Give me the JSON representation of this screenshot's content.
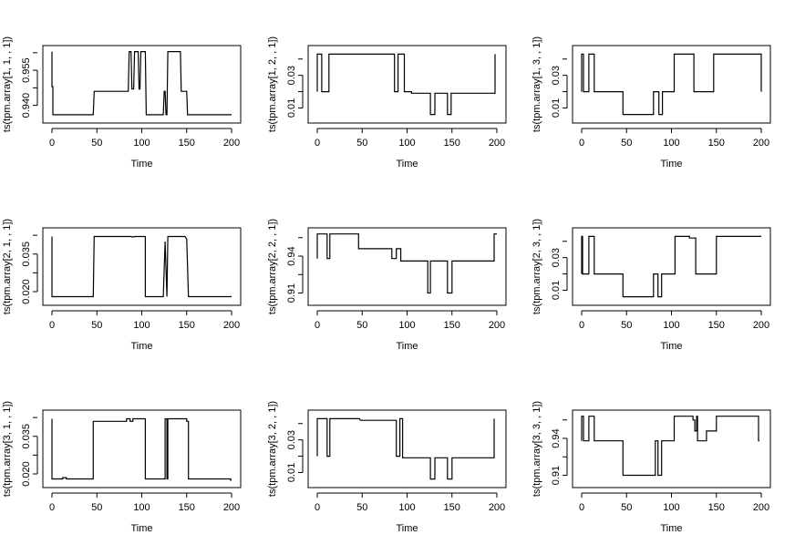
{
  "chart_data": [
    {
      "type": "line",
      "ylabel": "ts(tpm.array[1, 1, , 1])",
      "xlabel": "Time",
      "xlim": [
        0,
        200
      ],
      "ylim": [
        0.934,
        0.964
      ],
      "x_ticks": [
        0,
        50,
        100,
        150,
        200
      ],
      "y_ticks": [
        0.94,
        0.955
      ],
      "y_tick_labels": [
        "0.940",
        "0.955"
      ],
      "x": [
        0,
        0,
        1,
        1,
        2,
        46,
        47,
        85,
        86,
        87,
        88,
        89,
        90,
        91,
        92,
        96,
        97,
        98,
        99,
        100,
        103,
        104,
        105,
        106,
        107,
        124,
        125,
        126,
        127,
        128,
        129,
        130,
        131,
        132,
        133,
        143,
        144,
        145,
        146,
        147,
        148,
        150,
        151,
        152,
        200
      ],
      "y": [
        0.963,
        0.948,
        0.948,
        0.936,
        0.936,
        0.936,
        0.946,
        0.946,
        0.963,
        0.963,
        0.963,
        0.947,
        0.947,
        0.947,
        0.963,
        0.963,
        0.947,
        0.947,
        0.963,
        0.963,
        0.963,
        0.963,
        0.936,
        0.936,
        0.936,
        0.936,
        0.946,
        0.946,
        0.936,
        0.936,
        0.963,
        0.963,
        0.963,
        0.963,
        0.963,
        0.963,
        0.946,
        0.946,
        0.946,
        0.946,
        0.946,
        0.946,
        0.936,
        0.936,
        0.936
      ]
    },
    {
      "type": "line",
      "ylabel": "ts(tpm.array[1, 2, , 1])",
      "xlabel": "Time",
      "xlim": [
        0,
        200
      ],
      "ylim": [
        0.003,
        0.046
      ],
      "x_ticks": [
        0,
        50,
        100,
        150,
        200
      ],
      "y_ticks": [
        0.01,
        0.03
      ],
      "y_tick_labels": [
        "0.01",
        "0.03"
      ],
      "x": [
        0,
        0,
        5,
        5,
        13,
        13,
        17,
        17,
        83,
        83,
        86,
        86,
        90,
        90,
        97,
        97,
        102,
        102,
        105,
        105,
        122,
        122,
        126,
        126,
        131,
        131,
        145,
        145,
        149,
        149,
        154,
        154,
        198,
        198
      ],
      "y": [
        0.02,
        0.043,
        0.043,
        0.02,
        0.02,
        0.043,
        0.043,
        0.043,
        0.043,
        0.043,
        0.043,
        0.02,
        0.02,
        0.043,
        0.043,
        0.02,
        0.02,
        0.02,
        0.02,
        0.019,
        0.019,
        0.019,
        0.019,
        0.006,
        0.006,
        0.019,
        0.019,
        0.006,
        0.006,
        0.019,
        0.019,
        0.019,
        0.019,
        0.043
      ]
    },
    {
      "type": "line",
      "ylabel": "ts(tpm.array[1, 3, , 1])",
      "xlabel": "Time",
      "xlim": [
        0,
        200
      ],
      "ylim": [
        0.003,
        0.046
      ],
      "x_ticks": [
        0,
        50,
        100,
        150,
        200
      ],
      "y_ticks": [
        0.01,
        0.03
      ],
      "y_tick_labels": [
        "0.01",
        "0.03"
      ],
      "x": [
        0,
        0,
        2,
        2,
        8,
        8,
        14,
        14,
        17,
        17,
        46,
        46,
        80,
        80,
        86,
        86,
        90,
        90,
        95,
        95,
        103,
        103,
        125,
        125,
        130,
        130,
        147,
        147,
        200,
        200
      ],
      "y": [
        0.02,
        0.043,
        0.043,
        0.02,
        0.02,
        0.043,
        0.043,
        0.02,
        0.02,
        0.02,
        0.02,
        0.006,
        0.006,
        0.02,
        0.02,
        0.006,
        0.006,
        0.02,
        0.02,
        0.02,
        0.02,
        0.043,
        0.043,
        0.02,
        0.02,
        0.02,
        0.02,
        0.043,
        0.043,
        0.02
      ]
    },
    {
      "type": "line",
      "ylabel": "ts(tpm.array[2, 1, , 1])",
      "xlabel": "Time",
      "xlim": [
        0,
        200
      ],
      "ylim": [
        0.016,
        0.044
      ],
      "x_ticks": [
        0,
        50,
        100,
        150,
        200
      ],
      "y_ticks": [
        0.02,
        0.035
      ],
      "y_tick_labels": [
        "0.020",
        "0.035"
      ],
      "x": [
        0,
        0,
        2,
        2,
        12,
        14,
        16,
        46,
        47,
        88,
        90,
        92,
        93,
        104,
        104,
        120,
        120,
        124,
        124,
        126,
        126,
        128,
        128,
        129,
        129,
        131,
        131,
        141,
        141,
        148,
        148,
        150,
        150,
        152,
        152,
        199,
        199,
        200
      ],
      "y": [
        0.042,
        0.018,
        0.018,
        0.018,
        0.018,
        0.018,
        0.018,
        0.018,
        0.042,
        0.042,
        0.0418,
        0.042,
        0.042,
        0.042,
        0.018,
        0.018,
        0.018,
        0.018,
        0.018,
        0.04,
        0.04,
        0.018,
        0.018,
        0.042,
        0.042,
        0.042,
        0.042,
        0.042,
        0.042,
        0.042,
        0.042,
        0.041,
        0.041,
        0.018,
        0.018,
        0.018,
        0.018,
        0.018
      ]
    },
    {
      "type": "line",
      "ylabel": "ts(tpm.array[2, 2, , 1])",
      "xlabel": "Time",
      "xlim": [
        0,
        200
      ],
      "ylim": [
        0.903,
        0.96
      ],
      "x_ticks": [
        0,
        50,
        100,
        150,
        200
      ],
      "y_ticks": [
        0.91,
        0.94
      ],
      "y_tick_labels": [
        "0.91",
        "0.94"
      ],
      "x": [
        0,
        0,
        4,
        4,
        11,
        11,
        14,
        14,
        17,
        17,
        46,
        46,
        83,
        83,
        88,
        88,
        91,
        91,
        93,
        93,
        123,
        123,
        126,
        126,
        131,
        131,
        145,
        145,
        150,
        150,
        155,
        155,
        197,
        197,
        200
      ],
      "y": [
        0.938,
        0.958,
        0.958,
        0.958,
        0.958,
        0.938,
        0.938,
        0.958,
        0.958,
        0.958,
        0.958,
        0.946,
        0.946,
        0.938,
        0.938,
        0.946,
        0.946,
        0.946,
        0.946,
        0.936,
        0.936,
        0.91,
        0.91,
        0.936,
        0.936,
        0.936,
        0.936,
        0.91,
        0.91,
        0.936,
        0.936,
        0.936,
        0.936,
        0.958,
        0.958
      ]
    },
    {
      "type": "line",
      "ylabel": "ts(tpm.array[2, 3, , 1])",
      "xlabel": "Time",
      "xlim": [
        0,
        200
      ],
      "ylim": [
        0.003,
        0.046
      ],
      "x_ticks": [
        0,
        50,
        100,
        150,
        200
      ],
      "y_ticks": [
        0.01,
        0.03
      ],
      "y_tick_labels": [
        "0.01",
        "0.03"
      ],
      "x": [
        0,
        0,
        1,
        1,
        8,
        8,
        14,
        14,
        17,
        17,
        46,
        46,
        80,
        80,
        85,
        85,
        89,
        89,
        94,
        94,
        104,
        104,
        120,
        120,
        127,
        127,
        131,
        131,
        150,
        150,
        196,
        196,
        200
      ],
      "y": [
        0.02,
        0.043,
        0.043,
        0.02,
        0.02,
        0.043,
        0.043,
        0.02,
        0.02,
        0.02,
        0.02,
        0.006,
        0.006,
        0.02,
        0.02,
        0.006,
        0.006,
        0.02,
        0.02,
        0.02,
        0.02,
        0.043,
        0.043,
        0.042,
        0.042,
        0.02,
        0.02,
        0.02,
        0.02,
        0.043,
        0.043,
        0.043,
        0.043
      ]
    },
    {
      "type": "line",
      "ylabel": "ts(tpm.array[3, 1, , 1])",
      "xlabel": "Time",
      "xlim": [
        0,
        200
      ],
      "ylim": [
        0.016,
        0.044
      ],
      "x_ticks": [
        0,
        50,
        100,
        150,
        200
      ],
      "y_ticks": [
        0.02,
        0.035
      ],
      "y_tick_labels": [
        "0.020",
        "0.035"
      ],
      "x": [
        0,
        0,
        2,
        2,
        12,
        12,
        16,
        16,
        46,
        46,
        83,
        83,
        87,
        87,
        90,
        90,
        93,
        93,
        104,
        104,
        120,
        120,
        124,
        124,
        126,
        126,
        128,
        128,
        129,
        129,
        131,
        131,
        148,
        148,
        150,
        150,
        152,
        152,
        199,
        199,
        200
      ],
      "y": [
        0.042,
        0.018,
        0.018,
        0.018,
        0.018,
        0.0185,
        0.0185,
        0.018,
        0.018,
        0.041,
        0.041,
        0.042,
        0.042,
        0.041,
        0.041,
        0.042,
        0.042,
        0.042,
        0.042,
        0.018,
        0.018,
        0.018,
        0.018,
        0.018,
        0.018,
        0.042,
        0.042,
        0.018,
        0.018,
        0.042,
        0.042,
        0.042,
        0.042,
        0.042,
        0.042,
        0.041,
        0.041,
        0.018,
        0.018,
        0.0175,
        0.0175
      ]
    },
    {
      "type": "line",
      "ylabel": "ts(tpm.array[3, 2, , 1])",
      "xlabel": "Time",
      "xlim": [
        0,
        200
      ],
      "ylim": [
        0.003,
        0.046
      ],
      "x_ticks": [
        0,
        50,
        100,
        150,
        200
      ],
      "y_ticks": [
        0.01,
        0.03
      ],
      "y_tick_labels": [
        "0.01",
        "0.03"
      ],
      "x": [
        0,
        0,
        4,
        4,
        11,
        11,
        14,
        14,
        17,
        17,
        47,
        48,
        83,
        83,
        88,
        88,
        92,
        92,
        95,
        95,
        123,
        123,
        126,
        126,
        131,
        131,
        145,
        145,
        150,
        150,
        155,
        155,
        197,
        197
      ],
      "y": [
        0.02,
        0.043,
        0.043,
        0.043,
        0.043,
        0.02,
        0.02,
        0.043,
        0.043,
        0.043,
        0.043,
        0.042,
        0.042,
        0.042,
        0.042,
        0.02,
        0.02,
        0.043,
        0.043,
        0.019,
        0.019,
        0.019,
        0.019,
        0.006,
        0.006,
        0.019,
        0.019,
        0.006,
        0.006,
        0.019,
        0.019,
        0.019,
        0.019,
        0.043
      ]
    },
    {
      "type": "line",
      "ylabel": "ts(tpm.array[3, 3, , 1])",
      "xlabel": "Time",
      "xlim": [
        0,
        200
      ],
      "ylim": [
        0.903,
        0.96
      ],
      "x_ticks": [
        0,
        50,
        100,
        150,
        200
      ],
      "y_ticks": [
        0.91,
        0.94
      ],
      "y_tick_labels": [
        "0.91",
        "0.94"
      ],
      "x": [
        0,
        0,
        2,
        2,
        8,
        8,
        14,
        14,
        17,
        17,
        46,
        46,
        82,
        82,
        85,
        85,
        89,
        89,
        95,
        95,
        103,
        103,
        120,
        120,
        124,
        124,
        126,
        126,
        128,
        128,
        129,
        129,
        131,
        131,
        139,
        139,
        144,
        144,
        150,
        150,
        197,
        197,
        198
      ],
      "y": [
        0.938,
        0.958,
        0.958,
        0.938,
        0.938,
        0.958,
        0.958,
        0.938,
        0.938,
        0.938,
        0.938,
        0.91,
        0.91,
        0.938,
        0.938,
        0.91,
        0.91,
        0.938,
        0.938,
        0.938,
        0.938,
        0.958,
        0.958,
        0.958,
        0.958,
        0.955,
        0.955,
        0.946,
        0.946,
        0.958,
        0.958,
        0.938,
        0.938,
        0.938,
        0.938,
        0.946,
        0.946,
        0.946,
        0.946,
        0.958,
        0.958,
        0.938,
        0.938
      ]
    }
  ]
}
